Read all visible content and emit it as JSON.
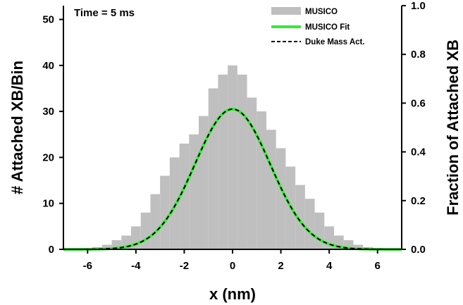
{
  "chart_data": {
    "type": "bar",
    "annotation": "Time = 5 ms",
    "xlabel": "x (nm)",
    "ylabel": "# Attached XB/Bin",
    "y2label": "Fraction of Attached XB",
    "xlim": [
      -7,
      7
    ],
    "ylim": [
      0,
      53
    ],
    "y2lim": [
      0,
      1.0
    ],
    "xticks": [
      "-6",
      "-4",
      "-2",
      "0",
      "2",
      "4",
      "6"
    ],
    "yticks": [
      "0",
      "10",
      "20",
      "30",
      "40",
      "50"
    ],
    "y2ticks": [
      "0.0",
      "0.2",
      "0.4",
      "0.6",
      "0.8",
      "1.0"
    ],
    "grid": false,
    "legend_position": "top-right",
    "colors": {
      "histogram": "#bfbfbf",
      "fit": "#33ee33",
      "mass_action": "#000000"
    },
    "series": [
      {
        "name": "MUSICO",
        "kind": "histogram",
        "bin_width": 0.05,
        "x": [
          -5.6,
          -5.2,
          -4.8,
          -4.4,
          -4.0,
          -3.6,
          -3.2,
          -2.8,
          -2.4,
          -2.0,
          -1.6,
          -1.2,
          -0.8,
          -0.4,
          0.0,
          0.4,
          0.8,
          1.2,
          1.6,
          2.0,
          2.4,
          2.8,
          3.2,
          3.6,
          4.0,
          4.4,
          4.8,
          5.2,
          5.6
        ],
        "values": [
          0.5,
          1,
          2,
          3,
          5,
          8,
          12,
          16,
          20,
          23,
          25,
          29,
          35,
          38,
          40,
          38,
          33,
          30,
          26,
          22,
          18,
          14,
          11,
          8,
          5,
          3,
          2,
          1,
          0.5
        ]
      },
      {
        "name": "MUSICO Fit",
        "kind": "gaussian",
        "mean": 0.0,
        "sigma": 1.56,
        "peak": 30.5,
        "x_range": [
          -7,
          7
        ]
      },
      {
        "name": "Duke Mass Act.",
        "kind": "gaussian",
        "mean": 0.0,
        "sigma": 1.56,
        "peak": 30.5,
        "x_range": [
          -7,
          7
        ]
      }
    ]
  }
}
